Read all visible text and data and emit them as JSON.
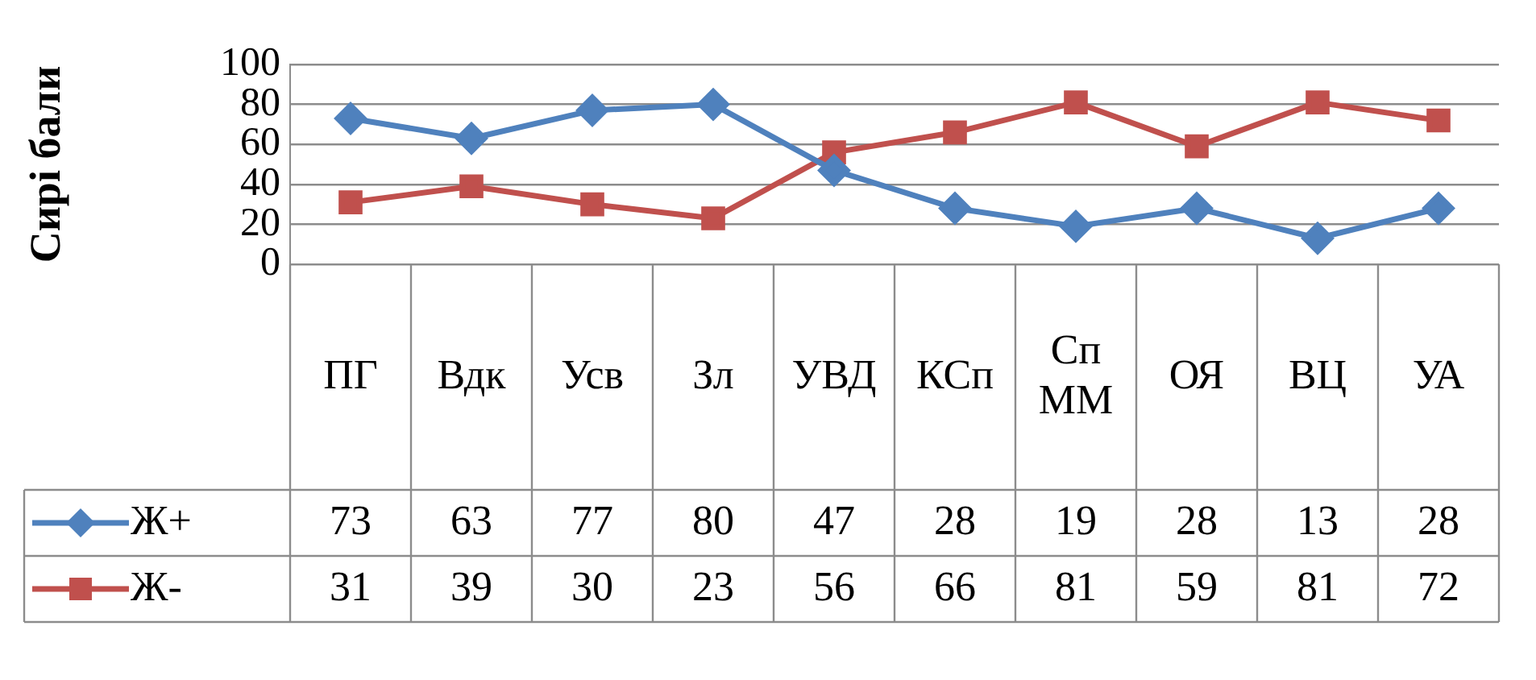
{
  "chart_data": {
    "type": "line",
    "ylabel": "Сирі бали",
    "categories": [
      "ПГ",
      "Вдк",
      "Усв",
      "Зл",
      "УВД",
      "КСп",
      "СпММ",
      "ОЯ",
      "ВЦ",
      "УА"
    ],
    "series": [
      {
        "name": "Ж+",
        "color": "#4f81bd",
        "marker": "diamond",
        "values": [
          73,
          63,
          77,
          80,
          47,
          28,
          19,
          28,
          13,
          28
        ]
      },
      {
        "name": "Ж-",
        "color": "#c0504d",
        "marker": "square",
        "values": [
          31,
          39,
          30,
          23,
          56,
          66,
          81,
          59,
          81,
          72
        ]
      }
    ],
    "ylim": [
      0,
      100
    ],
    "yticks": [
      0,
      20,
      40,
      60,
      80,
      100
    ],
    "grid": "y",
    "data_labels": true,
    "legend": "bottom left"
  }
}
